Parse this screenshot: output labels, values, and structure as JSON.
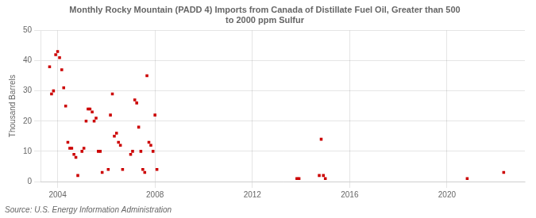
{
  "chart_data": {
    "type": "scatter",
    "title": "Monthly Rocky Mountain (PADD 4) Imports from Canada of Distillate Fuel Oil, Greater than 500\nto 2000 ppm Sulfur",
    "ylabel": "Thousand Barrels",
    "source": "Source: U.S. Energy Information Administration",
    "color": "#cc0000",
    "marker": "square",
    "grid": true,
    "xlim": [
      2003.3,
      2023.2
    ],
    "ylim": [
      0,
      50
    ],
    "xticks": [
      2004,
      2008,
      2012,
      2016,
      2020
    ],
    "yticks": [
      0,
      10,
      20,
      30,
      40,
      50
    ],
    "x": [
      2003.67,
      2003.75,
      2003.83,
      2003.92,
      2004.0,
      2004.08,
      2004.17,
      2004.25,
      2004.33,
      2004.42,
      2004.5,
      2004.58,
      2004.67,
      2004.75,
      2004.83,
      2005.0,
      2005.08,
      2005.17,
      2005.25,
      2005.33,
      2005.42,
      2005.5,
      2005.58,
      2005.67,
      2005.75,
      2005.83,
      2006.08,
      2006.17,
      2006.25,
      2006.33,
      2006.42,
      2006.5,
      2006.58,
      2006.67,
      2007.0,
      2007.08,
      2007.17,
      2007.25,
      2007.33,
      2007.42,
      2007.5,
      2007.58,
      2007.67,
      2007.75,
      2007.83,
      2007.92,
      2008.0,
      2008.08,
      2013.83,
      2013.92,
      2014.75,
      2014.83,
      2014.92,
      2015.0,
      2020.83,
      2022.33
    ],
    "values": [
      38,
      29,
      30,
      42,
      43,
      41,
      37,
      31,
      25,
      13,
      11,
      11,
      9,
      8,
      2,
      10,
      11,
      20,
      24,
      24,
      23,
      20,
      21,
      10,
      10,
      3,
      4,
      22,
      29,
      15,
      16,
      13,
      12,
      4,
      9,
      10,
      27,
      26,
      18,
      10,
      4,
      3,
      35,
      13,
      12,
      10,
      22,
      4,
      1,
      1,
      2,
      14,
      2,
      1,
      1,
      3
    ]
  }
}
